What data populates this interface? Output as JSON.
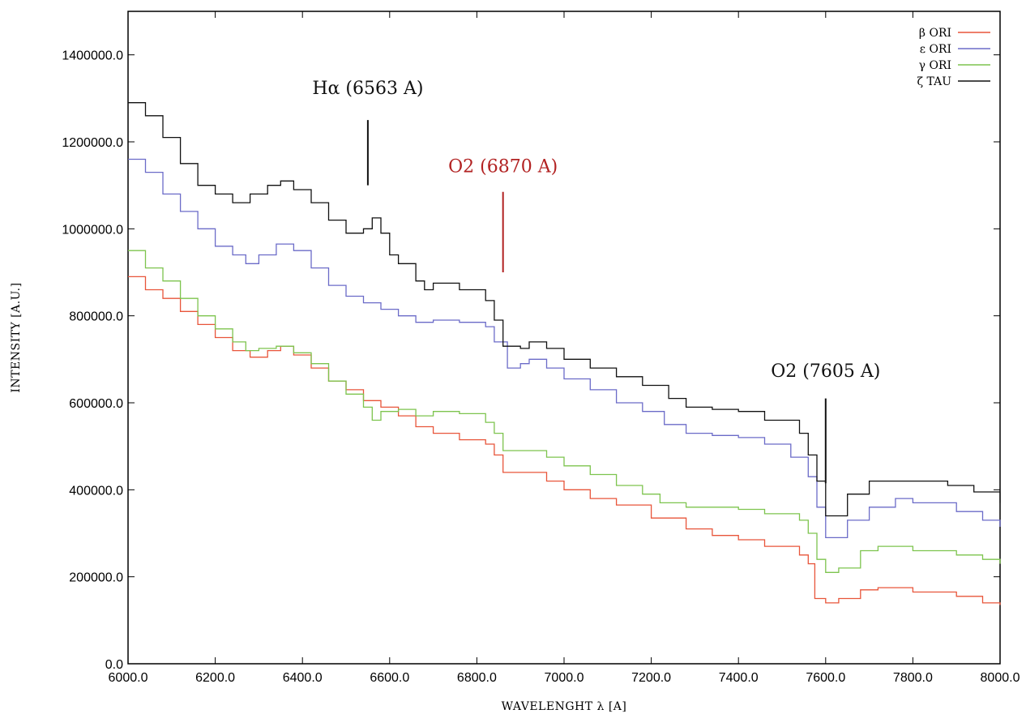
{
  "chart_data": {
    "type": "line",
    "step": true,
    "title": "",
    "xlabel": "WAVELENGHT λ [A]",
    "ylabel": "INTENSITY [A.U.]",
    "xlim": [
      6000,
      8000
    ],
    "ylim": [
      0,
      1500000
    ],
    "xticks": [
      6000,
      6200,
      6400,
      6600,
      6800,
      7000,
      7200,
      7400,
      7600,
      7800,
      8000
    ],
    "xtick_labels": [
      "6000.0",
      "6200.0",
      "6400.0",
      "6600.0",
      "6800.0",
      "7000.0",
      "7200.0",
      "7400.0",
      "7600.0",
      "7800.0",
      "8000.0"
    ],
    "yticks": [
      0,
      200000,
      400000,
      600000,
      800000,
      1000000,
      1200000,
      1400000
    ],
    "ytick_labels": [
      "0.0",
      "200000.0",
      "400000.0",
      "600000.0",
      "800000.0",
      "1000000.0",
      "1200000.0",
      "1400000.0"
    ],
    "grid": false,
    "legend_position": "top-right",
    "series": [
      {
        "name": "β ORI",
        "color": "#e8553a",
        "points": [
          [
            6000,
            890000
          ],
          [
            6040,
            860000
          ],
          [
            6080,
            840000
          ],
          [
            6120,
            810000
          ],
          [
            6160,
            780000
          ],
          [
            6200,
            750000
          ],
          [
            6240,
            720000
          ],
          [
            6280,
            705000
          ],
          [
            6320,
            720000
          ],
          [
            6350,
            730000
          ],
          [
            6380,
            710000
          ],
          [
            6420,
            680000
          ],
          [
            6460,
            650000
          ],
          [
            6500,
            630000
          ],
          [
            6540,
            605000
          ],
          [
            6580,
            590000
          ],
          [
            6620,
            570000
          ],
          [
            6660,
            545000
          ],
          [
            6700,
            530000
          ],
          [
            6760,
            515000
          ],
          [
            6820,
            505000
          ],
          [
            6840,
            480000
          ],
          [
            6860,
            440000
          ],
          [
            6900,
            440000
          ],
          [
            6960,
            420000
          ],
          [
            7000,
            400000
          ],
          [
            7060,
            380000
          ],
          [
            7120,
            365000
          ],
          [
            7200,
            335000
          ],
          [
            7280,
            310000
          ],
          [
            7340,
            295000
          ],
          [
            7400,
            285000
          ],
          [
            7460,
            270000
          ],
          [
            7540,
            250000
          ],
          [
            7560,
            230000
          ],
          [
            7575,
            150000
          ],
          [
            7600,
            140000
          ],
          [
            7630,
            150000
          ],
          [
            7680,
            170000
          ],
          [
            7720,
            175000
          ],
          [
            7800,
            165000
          ],
          [
            7900,
            155000
          ],
          [
            7960,
            140000
          ],
          [
            8000,
            135000
          ]
        ]
      },
      {
        "name": "ε ORI",
        "color": "#6b6bc8",
        "points": [
          [
            6000,
            1160000
          ],
          [
            6040,
            1130000
          ],
          [
            6080,
            1080000
          ],
          [
            6120,
            1040000
          ],
          [
            6160,
            1000000
          ],
          [
            6200,
            960000
          ],
          [
            6240,
            940000
          ],
          [
            6270,
            920000
          ],
          [
            6300,
            940000
          ],
          [
            6340,
            965000
          ],
          [
            6380,
            950000
          ],
          [
            6420,
            910000
          ],
          [
            6460,
            870000
          ],
          [
            6500,
            845000
          ],
          [
            6540,
            830000
          ],
          [
            6580,
            815000
          ],
          [
            6620,
            800000
          ],
          [
            6660,
            785000
          ],
          [
            6700,
            790000
          ],
          [
            6760,
            785000
          ],
          [
            6820,
            775000
          ],
          [
            6840,
            740000
          ],
          [
            6870,
            680000
          ],
          [
            6900,
            690000
          ],
          [
            6920,
            700000
          ],
          [
            6960,
            680000
          ],
          [
            7000,
            655000
          ],
          [
            7060,
            630000
          ],
          [
            7120,
            600000
          ],
          [
            7180,
            580000
          ],
          [
            7230,
            550000
          ],
          [
            7280,
            530000
          ],
          [
            7340,
            525000
          ],
          [
            7400,
            520000
          ],
          [
            7460,
            505000
          ],
          [
            7520,
            475000
          ],
          [
            7560,
            430000
          ],
          [
            7580,
            360000
          ],
          [
            7600,
            290000
          ],
          [
            7620,
            290000
          ],
          [
            7650,
            330000
          ],
          [
            7700,
            360000
          ],
          [
            7760,
            380000
          ],
          [
            7800,
            370000
          ],
          [
            7900,
            350000
          ],
          [
            7960,
            330000
          ],
          [
            8000,
            315000
          ]
        ]
      },
      {
        "name": "γ ORI",
        "color": "#7dc44e",
        "points": [
          [
            6000,
            950000
          ],
          [
            6040,
            910000
          ],
          [
            6080,
            880000
          ],
          [
            6120,
            840000
          ],
          [
            6160,
            800000
          ],
          [
            6200,
            770000
          ],
          [
            6240,
            740000
          ],
          [
            6270,
            720000
          ],
          [
            6300,
            725000
          ],
          [
            6340,
            730000
          ],
          [
            6380,
            715000
          ],
          [
            6420,
            690000
          ],
          [
            6460,
            650000
          ],
          [
            6500,
            620000
          ],
          [
            6540,
            590000
          ],
          [
            6560,
            560000
          ],
          [
            6580,
            580000
          ],
          [
            6620,
            585000
          ],
          [
            6660,
            570000
          ],
          [
            6700,
            580000
          ],
          [
            6760,
            575000
          ],
          [
            6820,
            555000
          ],
          [
            6840,
            530000
          ],
          [
            6860,
            490000
          ],
          [
            6900,
            490000
          ],
          [
            6960,
            475000
          ],
          [
            7000,
            455000
          ],
          [
            7060,
            435000
          ],
          [
            7120,
            410000
          ],
          [
            7180,
            390000
          ],
          [
            7220,
            370000
          ],
          [
            7280,
            360000
          ],
          [
            7340,
            360000
          ],
          [
            7400,
            355000
          ],
          [
            7460,
            345000
          ],
          [
            7540,
            330000
          ],
          [
            7560,
            300000
          ],
          [
            7580,
            240000
          ],
          [
            7600,
            210000
          ],
          [
            7630,
            220000
          ],
          [
            7680,
            260000
          ],
          [
            7720,
            270000
          ],
          [
            7800,
            260000
          ],
          [
            7900,
            250000
          ],
          [
            7960,
            240000
          ],
          [
            8000,
            230000
          ]
        ]
      },
      {
        "name": "ζ TAU",
        "color": "#111111",
        "points": [
          [
            6000,
            1290000
          ],
          [
            6040,
            1260000
          ],
          [
            6080,
            1210000
          ],
          [
            6120,
            1150000
          ],
          [
            6160,
            1100000
          ],
          [
            6200,
            1080000
          ],
          [
            6240,
            1060000
          ],
          [
            6280,
            1080000
          ],
          [
            6320,
            1100000
          ],
          [
            6350,
            1110000
          ],
          [
            6380,
            1090000
          ],
          [
            6420,
            1060000
          ],
          [
            6460,
            1020000
          ],
          [
            6500,
            990000
          ],
          [
            6540,
            1000000
          ],
          [
            6560,
            1025000
          ],
          [
            6580,
            990000
          ],
          [
            6600,
            940000
          ],
          [
            6620,
            920000
          ],
          [
            6660,
            880000
          ],
          [
            6680,
            860000
          ],
          [
            6700,
            875000
          ],
          [
            6760,
            860000
          ],
          [
            6820,
            835000
          ],
          [
            6840,
            790000
          ],
          [
            6860,
            730000
          ],
          [
            6900,
            725000
          ],
          [
            6920,
            740000
          ],
          [
            6960,
            725000
          ],
          [
            7000,
            700000
          ],
          [
            7060,
            680000
          ],
          [
            7120,
            660000
          ],
          [
            7180,
            640000
          ],
          [
            7240,
            610000
          ],
          [
            7280,
            590000
          ],
          [
            7340,
            585000
          ],
          [
            7400,
            580000
          ],
          [
            7460,
            560000
          ],
          [
            7540,
            530000
          ],
          [
            7560,
            480000
          ],
          [
            7580,
            420000
          ],
          [
            7600,
            340000
          ],
          [
            7620,
            340000
          ],
          [
            7650,
            390000
          ],
          [
            7700,
            420000
          ],
          [
            7760,
            420000
          ],
          [
            7800,
            420000
          ],
          [
            7880,
            410000
          ],
          [
            7940,
            395000
          ],
          [
            8000,
            370000
          ]
        ]
      }
    ],
    "annotations": [
      {
        "text": "Hα (6563 A)",
        "x": 6550,
        "color": "#111111",
        "line_from": 1100000,
        "line_to": 1250000,
        "text_y": 1310000
      },
      {
        "text": "O2 (6870 A)",
        "x": 6860,
        "color": "#b22222",
        "line_from": 900000,
        "line_to": 1085000,
        "text_y": 1130000
      },
      {
        "text": "O2 (7605 A)",
        "x": 7600,
        "color": "#111111",
        "line_from": 415000,
        "line_to": 610000,
        "text_y": 660000
      }
    ]
  }
}
